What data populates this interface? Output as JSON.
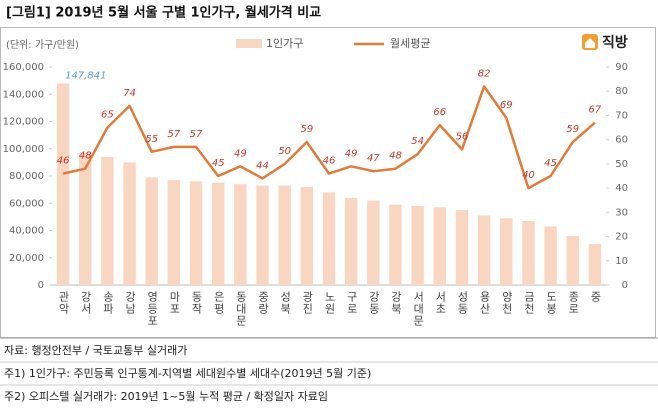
{
  "chart_data": {
    "type": "bar-line",
    "title": "[그림1] 2019년 5월 서울 구별 1인가구, 월세가격 비교",
    "unit": "(단위: 가구/만원)",
    "logo": "직방",
    "categories": [
      "관악",
      "강서",
      "송파",
      "강남",
      "영등포",
      "마포",
      "동작",
      "은평",
      "동대문",
      "중랑",
      "성북",
      "광진",
      "노원",
      "구로",
      "강동",
      "강북",
      "서대문",
      "서초",
      "성동",
      "용산",
      "양천",
      "금천",
      "도봉",
      "종로",
      "중"
    ],
    "series": [
      {
        "name": "1인가구",
        "color": "#f9d6c2",
        "axis": "y",
        "values": [
          147841,
          97000,
          94000,
          90000,
          79000,
          77000,
          76000,
          75000,
          74000,
          73000,
          73000,
          72000,
          68000,
          64000,
          62000,
          59000,
          58000,
          57000,
          55000,
          51000,
          49000,
          47000,
          43000,
          36000,
          30000
        ],
        "value_labels": [
          "147,841",
          null,
          null,
          null,
          null,
          null,
          null,
          null,
          null,
          null,
          null,
          null,
          null,
          null,
          null,
          null,
          null,
          null,
          null,
          null,
          null,
          null,
          null,
          null,
          null
        ]
      },
      {
        "name": "월세평균",
        "color": "#e07b39",
        "axis": "y2",
        "values": [
          46,
          48,
          65,
          74,
          55,
          57,
          57,
          45,
          49,
          44,
          50,
          59,
          46,
          49,
          47,
          48,
          54,
          66,
          56,
          82,
          69,
          40,
          45,
          59,
          67
        ]
      }
    ],
    "ylim": [
      0,
      160000
    ],
    "yticks": [
      0,
      {
        "value": 20000,
        "label": "20,000"
      },
      {
        "value": 40000,
        "label": "40,000"
      },
      {
        "value": 60000,
        "label": "60,000"
      },
      {
        "value": 80000,
        "label": "80,000"
      },
      {
        "value": 100000,
        "label": "100,000"
      },
      {
        "value": 120000,
        "label": "120,000"
      },
      {
        "value": 140000,
        "label": "140,000"
      },
      {
        "value": 160000,
        "label": "160,000"
      }
    ],
    "y2lim": [
      0,
      90
    ],
    "y2ticks": [
      0,
      10,
      20,
      30,
      40,
      50,
      60,
      70,
      80,
      90
    ],
    "notes": [
      "자료: 행정안전부 / 국토교통부 실거래가",
      "주1) 1인가구: 주민등록 인구통계-지역별 세대원수별 세대수(2019년 5월 기준)",
      "주2) 오피스텔 실거래가: 2019년 1~5월 누적 평균 / 확정일자 자료임"
    ]
  }
}
